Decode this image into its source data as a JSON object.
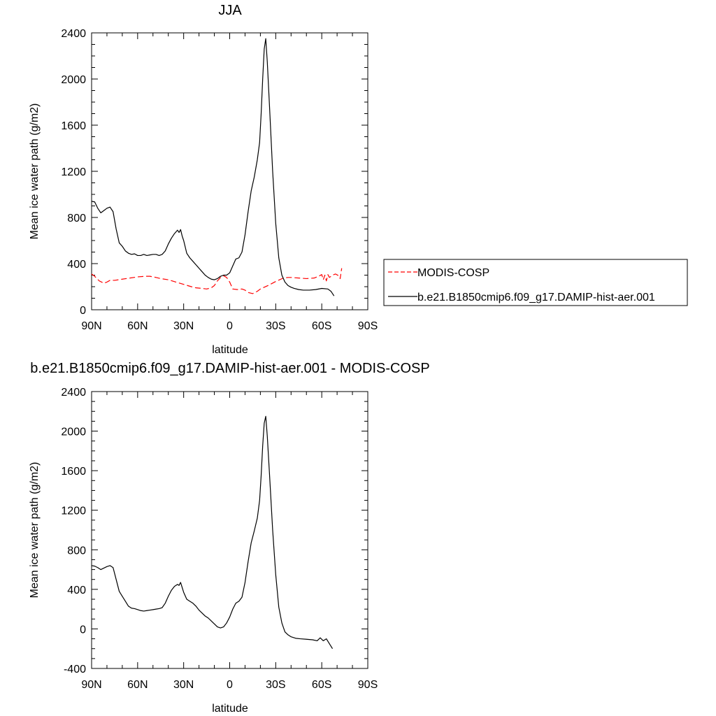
{
  "chart_data": [
    {
      "type": "line",
      "title": "JJA",
      "xlabel": "latitude",
      "ylabel": "Mean ice water path (g/m2)",
      "xlim": [
        90,
        -90
      ],
      "ylim": [
        0,
        2400
      ],
      "x_ticks": [
        90,
        60,
        30,
        0,
        -30,
        -60,
        -90
      ],
      "x_tick_labels": [
        "90N",
        "60N",
        "30N",
        "0",
        "30S",
        "60S",
        "90S"
      ],
      "y_ticks": [
        0,
        400,
        800,
        1200,
        1600,
        2000,
        2400
      ],
      "y_tick_labels": [
        "0",
        "400",
        "800",
        "1200",
        "1600",
        "2000",
        "2400"
      ],
      "grid": false,
      "legend_position": "right",
      "series": [
        {
          "name": "MODIS-COSP",
          "color": "#ff0000",
          "dash": "dashed",
          "points": [
            [
              90,
              310
            ],
            [
              88,
              290
            ],
            [
              85,
              250
            ],
            [
              82,
              230
            ],
            [
              80,
              240
            ],
            [
              78,
              255
            ],
            [
              75,
              255
            ],
            [
              70,
              265
            ],
            [
              65,
              275
            ],
            [
              60,
              285
            ],
            [
              55,
              290
            ],
            [
              52,
              290
            ],
            [
              48,
              280
            ],
            [
              45,
              270
            ],
            [
              40,
              260
            ],
            [
              35,
              240
            ],
            [
              30,
              220
            ],
            [
              25,
              200
            ],
            [
              22,
              190
            ],
            [
              18,
              185
            ],
            [
              15,
              180
            ],
            [
              12,
              190
            ],
            [
              10,
              210
            ],
            [
              8,
              250
            ],
            [
              6,
              280
            ],
            [
              4,
              295
            ],
            [
              2,
              280
            ],
            [
              0,
              240
            ],
            [
              -2,
              180
            ],
            [
              -5,
              175
            ],
            [
              -8,
              180
            ],
            [
              -10,
              170
            ],
            [
              -12,
              150
            ],
            [
              -15,
              140
            ],
            [
              -18,
              160
            ],
            [
              -20,
              180
            ],
            [
              -25,
              210
            ],
            [
              -30,
              245
            ],
            [
              -35,
              275
            ],
            [
              -38,
              280
            ],
            [
              -40,
              280
            ],
            [
              -45,
              275
            ],
            [
              -50,
              270
            ],
            [
              -55,
              275
            ],
            [
              -58,
              290
            ],
            [
              -60,
              305
            ],
            [
              -61,
              260
            ],
            [
              -62,
              300
            ],
            [
              -63,
              250
            ],
            [
              -64,
              305
            ],
            [
              -65,
              280
            ],
            [
              -67,
              300
            ],
            [
              -69,
              310
            ],
            [
              -71,
              295
            ],
            [
              -72,
              270
            ],
            [
              -73,
              360
            ]
          ]
        },
        {
          "name": "b.e21.B1850cmip6.f09_g17.DAMIP-hist-aer.001",
          "color": "#000000",
          "dash": "solid",
          "points": [
            [
              90,
              940
            ],
            [
              88,
              935
            ],
            [
              86,
              880
            ],
            [
              84,
              840
            ],
            [
              82,
              860
            ],
            [
              80,
              880
            ],
            [
              78,
              890
            ],
            [
              76,
              850
            ],
            [
              74,
              700
            ],
            [
              72,
              580
            ],
            [
              70,
              550
            ],
            [
              68,
              510
            ],
            [
              66,
              490
            ],
            [
              64,
              480
            ],
            [
              62,
              485
            ],
            [
              60,
              470
            ],
            [
              58,
              470
            ],
            [
              56,
              480
            ],
            [
              54,
              470
            ],
            [
              52,
              475
            ],
            [
              50,
              480
            ],
            [
              48,
              480
            ],
            [
              46,
              470
            ],
            [
              44,
              480
            ],
            [
              42,
              510
            ],
            [
              40,
              570
            ],
            [
              38,
              620
            ],
            [
              36,
              660
            ],
            [
              34,
              690
            ],
            [
              33,
              670
            ],
            [
              32,
              695
            ],
            [
              31,
              640
            ],
            [
              30,
              600
            ],
            [
              28,
              490
            ],
            [
              26,
              450
            ],
            [
              24,
              420
            ],
            [
              22,
              390
            ],
            [
              20,
              360
            ],
            [
              18,
              330
            ],
            [
              16,
              300
            ],
            [
              14,
              280
            ],
            [
              12,
              265
            ],
            [
              10,
              260
            ],
            [
              8,
              270
            ],
            [
              6,
              290
            ],
            [
              4,
              300
            ],
            [
              2,
              300
            ],
            [
              0,
              320
            ],
            [
              -2,
              380
            ],
            [
              -4,
              440
            ],
            [
              -6,
              450
            ],
            [
              -8,
              500
            ],
            [
              -10,
              650
            ],
            [
              -12,
              850
            ],
            [
              -14,
              1030
            ],
            [
              -16,
              1150
            ],
            [
              -18,
              1300
            ],
            [
              -19.5,
              1450
            ],
            [
              -20.5,
              1700
            ],
            [
              -21.5,
              2000
            ],
            [
              -22.5,
              2260
            ],
            [
              -23.5,
              2350
            ],
            [
              -24.5,
              2150
            ],
            [
              -26,
              1750
            ],
            [
              -28,
              1200
            ],
            [
              -30,
              750
            ],
            [
              -32,
              450
            ],
            [
              -34,
              300
            ],
            [
              -36,
              240
            ],
            [
              -38,
              210
            ],
            [
              -40,
              195
            ],
            [
              -42,
              185
            ],
            [
              -45,
              175
            ],
            [
              -48,
              170
            ],
            [
              -52,
              170
            ],
            [
              -56,
              175
            ],
            [
              -60,
              185
            ],
            [
              -64,
              180
            ],
            [
              -66,
              160
            ],
            [
              -68,
              120
            ]
          ]
        }
      ]
    },
    {
      "type": "line",
      "title": "b.e21.B1850cmip6.f09_g17.DAMIP-hist-aer.001 - MODIS-COSP",
      "xlabel": "latitude",
      "ylabel": "Mean ice water path (g/m2)",
      "xlim": [
        90,
        -90
      ],
      "ylim": [
        -400,
        2400
      ],
      "x_ticks": [
        90,
        60,
        30,
        0,
        -30,
        -60,
        -90
      ],
      "x_tick_labels": [
        "90N",
        "60N",
        "30N",
        "0",
        "30S",
        "60S",
        "90S"
      ],
      "y_ticks": [
        -400,
        0,
        400,
        800,
        1200,
        1600,
        2000,
        2400
      ],
      "y_tick_labels": [
        "-400",
        "0",
        "400",
        "800",
        "1200",
        "1600",
        "2000",
        "2400"
      ],
      "grid": false,
      "series": [
        {
          "color": "#000000",
          "dash": "solid",
          "points": [
            [
              90,
              640
            ],
            [
              88,
              635
            ],
            [
              86,
              620
            ],
            [
              84,
              600
            ],
            [
              82,
              615
            ],
            [
              80,
              630
            ],
            [
              78,
              640
            ],
            [
              76,
              620
            ],
            [
              74,
              500
            ],
            [
              72,
              380
            ],
            [
              70,
              330
            ],
            [
              68,
              280
            ],
            [
              66,
              230
            ],
            [
              64,
              210
            ],
            [
              62,
              205
            ],
            [
              60,
              195
            ],
            [
              58,
              185
            ],
            [
              56,
              180
            ],
            [
              54,
              185
            ],
            [
              52,
              190
            ],
            [
              50,
              195
            ],
            [
              48,
              200
            ],
            [
              46,
              205
            ],
            [
              44,
              215
            ],
            [
              42,
              260
            ],
            [
              40,
              330
            ],
            [
              38,
              390
            ],
            [
              36,
              430
            ],
            [
              34,
              450
            ],
            [
              33,
              440
            ],
            [
              32,
              470
            ],
            [
              31,
              420
            ],
            [
              30,
              370
            ],
            [
              28,
              300
            ],
            [
              26,
              280
            ],
            [
              24,
              260
            ],
            [
              22,
              230
            ],
            [
              20,
              190
            ],
            [
              18,
              160
            ],
            [
              16,
              130
            ],
            [
              14,
              110
            ],
            [
              12,
              80
            ],
            [
              10,
              50
            ],
            [
              8,
              20
            ],
            [
              6,
              10
            ],
            [
              4,
              20
            ],
            [
              2,
              60
            ],
            [
              0,
              120
            ],
            [
              -2,
              200
            ],
            [
              -4,
              260
            ],
            [
              -6,
              280
            ],
            [
              -8,
              320
            ],
            [
              -10,
              470
            ],
            [
              -12,
              680
            ],
            [
              -14,
              870
            ],
            [
              -16,
              990
            ],
            [
              -18,
              1120
            ],
            [
              -19.5,
              1300
            ],
            [
              -20.5,
              1550
            ],
            [
              -21.5,
              1850
            ],
            [
              -22.5,
              2080
            ],
            [
              -23.5,
              2150
            ],
            [
              -24.5,
              1950
            ],
            [
              -26,
              1550
            ],
            [
              -28,
              1000
            ],
            [
              -30,
              550
            ],
            [
              -32,
              220
            ],
            [
              -34,
              60
            ],
            [
              -36,
              -30
            ],
            [
              -38,
              -60
            ],
            [
              -40,
              -80
            ],
            [
              -43,
              -95
            ],
            [
              -46,
              -100
            ],
            [
              -50,
              -105
            ],
            [
              -54,
              -110
            ],
            [
              -57,
              -120
            ],
            [
              -59,
              -90
            ],
            [
              -61,
              -120
            ],
            [
              -63,
              -100
            ],
            [
              -65,
              -150
            ],
            [
              -67,
              -200
            ]
          ]
        }
      ]
    }
  ]
}
